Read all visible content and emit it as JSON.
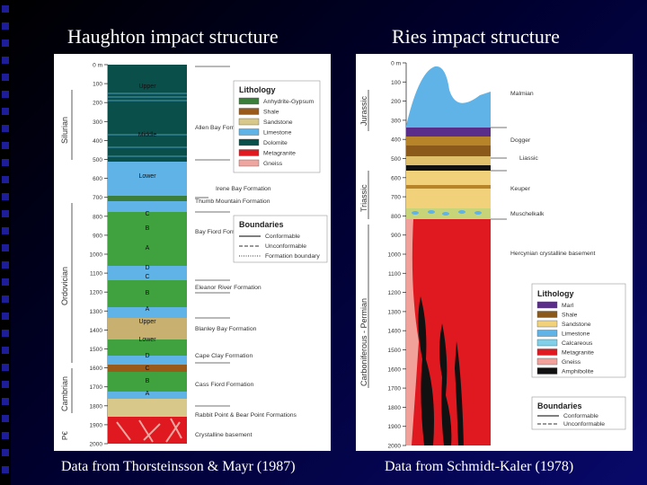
{
  "slide": {
    "left_title": "Haughton impact structure",
    "right_title": "Ries impact structure",
    "left_caption": "Data from Thorsteinsson & Mayr (1987)",
    "right_caption": "Data from Schmidt-Kaler (1978)"
  },
  "haughton": {
    "depth_ticks": [
      "0 m",
      "100",
      "200",
      "300",
      "400",
      "500",
      "600",
      "700",
      "800",
      "900",
      "1000",
      "1100",
      "1200",
      "1300",
      "1400",
      "1500",
      "1600",
      "1700",
      "1800",
      "1900",
      "2000"
    ],
    "periods": [
      "Silurian",
      "Ordovician",
      "Cambrian",
      "P€"
    ],
    "column_labels": [
      "Upper",
      "Middle",
      "Lower",
      "C",
      "B",
      "A",
      "D",
      "C",
      "B",
      "A",
      "Upper",
      "Lower",
      "D",
      "C",
      "B",
      "A"
    ],
    "formations": [
      "Allen Bay Formation",
      "Irene Bay Formation",
      "Thumb Mountain Formation",
      "Bay Fiord Formation",
      "Eleanor River Formation",
      "Blanley Bay Formation",
      "Cape Clay Formation",
      "Cass Fiord Formation",
      "Rabbit Point & Bear Point Formations",
      "Crystalline basement"
    ],
    "lithology_title": "Lithology",
    "lithology": [
      {
        "name": "Anhydrite-Gypsum",
        "color": "#3b7d3b"
      },
      {
        "name": "Shale",
        "color": "#9a5a1a"
      },
      {
        "name": "Sandstone",
        "color": "#d8c98a"
      },
      {
        "name": "Limestone",
        "color": "#5fb3e6"
      },
      {
        "name": "Dolomite",
        "color": "#0b4f4a"
      },
      {
        "name": "Metagranite",
        "color": "#e0181f"
      },
      {
        "name": "Gneiss",
        "color": "#f0a6a0"
      }
    ],
    "boundaries_title": "Boundaries",
    "boundaries": [
      "Conformable",
      "Unconformable",
      "Formation boundary"
    ]
  },
  "ries": {
    "depth_ticks": [
      "0 m",
      "100",
      "200",
      "300",
      "400",
      "500",
      "600",
      "700",
      "800",
      "900",
      "1000",
      "1100",
      "1200",
      "1300",
      "1400",
      "1500",
      "1600",
      "1700",
      "1800",
      "1900",
      "2000"
    ],
    "periods": [
      "Jurassic",
      "Triassic",
      "Carboniferous - Permian"
    ],
    "units": [
      "Malmian",
      "Dogger",
      "Liassic",
      "Keuper",
      "Muschelkalk",
      "Hercynian crystalline basement"
    ],
    "lithology_title": "Lithology",
    "lithology": [
      {
        "name": "Marl",
        "color": "#5b2d8a"
      },
      {
        "name": "Shale",
        "color": "#8b5a1a"
      },
      {
        "name": "Sandstone",
        "color": "#f1d27a"
      },
      {
        "name": "Limestone",
        "color": "#5fb3e6"
      },
      {
        "name": "Calcareous",
        "color": "#7fd0e8"
      },
      {
        "name": "Metagranite",
        "color": "#e0181f"
      },
      {
        "name": "Gneiss",
        "color": "#f2a09a"
      },
      {
        "name": "Amphibolite",
        "color": "#111111"
      }
    ],
    "boundaries_title": "Boundaries",
    "boundaries": [
      "Conformable",
      "Unconformable"
    ]
  }
}
